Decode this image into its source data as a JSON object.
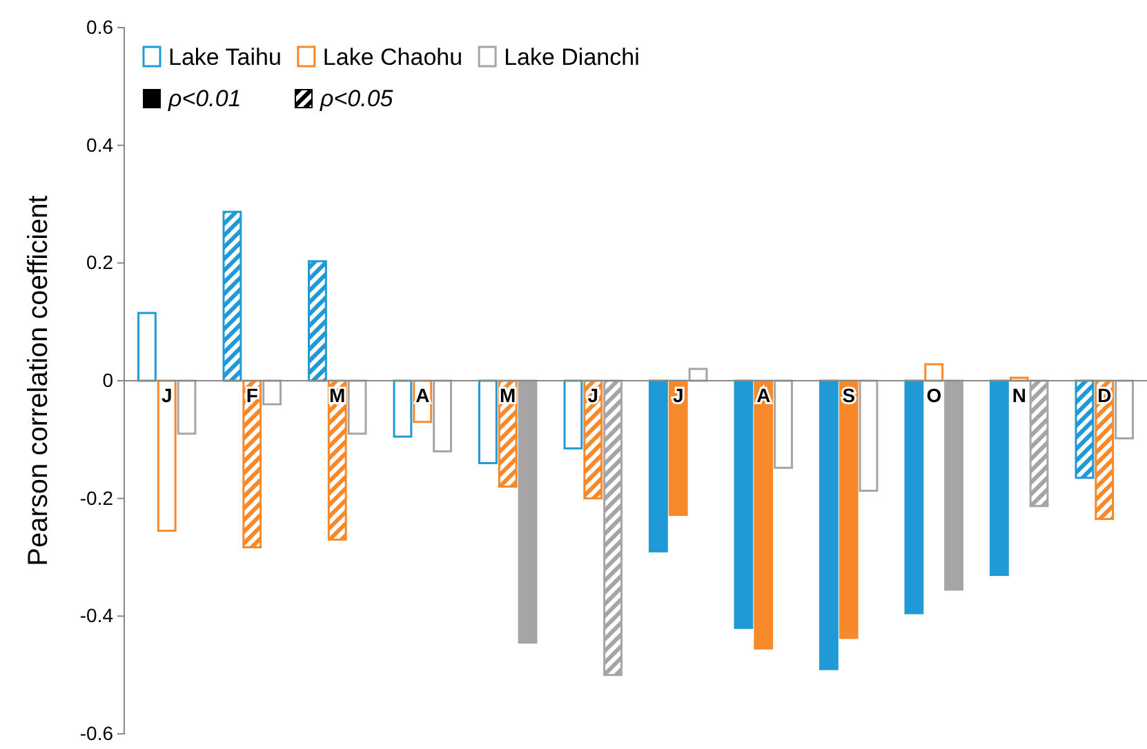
{
  "chart_data": {
    "type": "bar",
    "ylabel": "Pearson correlation coefficient",
    "categories": [
      "J",
      "F",
      "M",
      "A",
      "M",
      "J",
      "J",
      "A",
      "S",
      "O",
      "N",
      "D"
    ],
    "series": [
      {
        "name": "Lake Taihu",
        "color": "#1f9ad6",
        "values": [
          0.115,
          null,
          null,
          -0.095,
          -0.14,
          -0.115,
          null,
          null,
          null,
          null,
          null,
          null
        ]
      },
      {
        "color": "#1f9ad6",
        "values": [
          null,
          null,
          null,
          null,
          null,
          null,
          -0.29,
          -0.42,
          -0.49,
          -0.395,
          -0.33,
          null
        ]
      },
      {
        "color": "#1f9ad6",
        "values": [
          null,
          0.287,
          0.203,
          null,
          null,
          null,
          null,
          null,
          null,
          null,
          null,
          -0.165
        ]
      },
      {
        "name": "Lake Chaohu",
        "color": "#f7892b",
        "values": [
          -0.255,
          null,
          null,
          -0.07,
          null,
          null,
          null,
          null,
          null,
          0.028,
          0.005,
          null
        ]
      },
      {
        "color": "#f7892b",
        "values": [
          null,
          null,
          null,
          null,
          null,
          null,
          -0.228,
          -0.455,
          -0.437,
          null,
          null,
          null
        ]
      },
      {
        "color": "#f7892b",
        "values": [
          null,
          -0.283,
          -0.27,
          null,
          -0.18,
          -0.2,
          null,
          null,
          null,
          null,
          null,
          -0.235
        ]
      },
      {
        "name": "Lake Dianchi",
        "color": "#a6a4a4",
        "values": [
          -0.09,
          -0.04,
          -0.09,
          -0.12,
          null,
          null,
          0.02,
          -0.148,
          -0.187,
          null,
          null,
          -0.098
        ]
      },
      {
        "color": "#a6a4a4",
        "values": [
          null,
          null,
          null,
          null,
          -0.445,
          null,
          null,
          null,
          null,
          -0.355,
          null,
          null
        ]
      },
      {
        "color": "#a6a4a4",
        "values": [
          null,
          null,
          null,
          null,
          null,
          -0.5,
          null,
          null,
          null,
          null,
          -0.213,
          null
        ]
      }
    ],
    "annotations": [
      "ρ<0.01",
      "ρ<0.05"
    ],
    "ylim": [
      -0.6,
      0.6
    ],
    "yticks": [
      -0.6,
      -0.4,
      -0.2,
      0,
      0.2,
      0.4,
      0.6
    ],
    "legend": "top left",
    "grid": false
  }
}
